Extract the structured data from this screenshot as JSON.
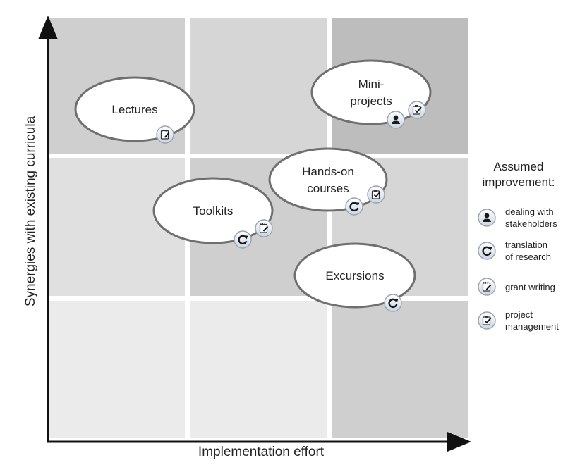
{
  "axes": {
    "x_label": "Implementation effort",
    "y_label": "Synergies with existing curricula"
  },
  "grid": {
    "cell_colors": [
      [
        "#cfcfcf",
        "#d6d6d6",
        "#bdbdbd"
      ],
      [
        "#e0e0e0",
        "#cfcfcf",
        "#d6d6d6"
      ],
      [
        "#ebebeb",
        "#ebebeb",
        "#cfcfcf"
      ]
    ]
  },
  "activities": [
    {
      "id": "lectures",
      "lines": [
        "Lectures"
      ],
      "improvements": [
        "grant-writing"
      ]
    },
    {
      "id": "mini-projects",
      "lines": [
        "Mini-",
        "projects"
      ],
      "improvements": [
        "dealing-with-stakeholders",
        "project-management"
      ]
    },
    {
      "id": "hands-on-courses",
      "lines": [
        "Hands-on",
        "courses"
      ],
      "improvements": [
        "translation-of-research",
        "project-management"
      ]
    },
    {
      "id": "toolkits",
      "lines": [
        "Toolkits"
      ],
      "improvements": [
        "translation-of-research",
        "grant-writing"
      ]
    },
    {
      "id": "excursions",
      "lines": [
        "Excursions"
      ],
      "improvements": [
        "translation-of-research"
      ]
    }
  ],
  "legend": {
    "title_lines": [
      "Assumed",
      "improvement:"
    ],
    "items": [
      {
        "icon": "dealing-with-stakeholders",
        "lines": [
          "dealing with",
          "stakeholders"
        ]
      },
      {
        "icon": "translation-of-research",
        "lines": [
          "translation",
          "of research"
        ]
      },
      {
        "icon": "grant-writing",
        "lines": [
          "grant writing"
        ]
      },
      {
        "icon": "project-management",
        "lines": [
          "project",
          "management"
        ]
      }
    ]
  }
}
